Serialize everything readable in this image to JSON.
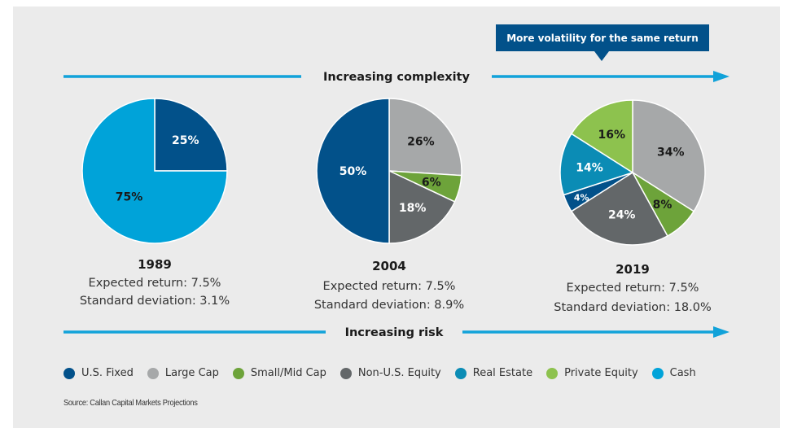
{
  "chart_data": {
    "type": "pie",
    "title": "",
    "top_arrow_label": "Increasing complexity",
    "bottom_arrow_label": "Increasing risk",
    "callout": "More volatility for the same return",
    "source": "Source: Callan Capital Markets Projections",
    "colors": {
      "U.S. Fixed": "#02518a",
      "Large Cap": "#a6a8a9",
      "Small/Mid Cap": "#6da33a",
      "Non-U.S. Equity": "#636769",
      "Real Estate": "#0b8cb5",
      "Private Equity": "#8dc24e",
      "Cash": "#00a3d9",
      "arrow": "#11a2d9"
    },
    "legend": [
      "U.S. Fixed",
      "Large Cap",
      "Small/Mid Cap",
      "Non-U.S. Equity",
      "Real Estate",
      "Private Equity",
      "Cash"
    ],
    "pies": [
      {
        "year": "1989",
        "expected_return": "Expected return: 7.5%",
        "std_dev": "Standard deviation: 3.1%",
        "slices": [
          {
            "name": "U.S. Fixed",
            "value": 25,
            "label": "25%",
            "label_color": "#ffffff"
          },
          {
            "name": "Cash",
            "value": 75,
            "label": "75%",
            "label_color": "#1a1a1a"
          }
        ]
      },
      {
        "year": "2004",
        "expected_return": "Expected return: 7.5%",
        "std_dev": "Standard deviation: 8.9%",
        "slices": [
          {
            "name": "Large Cap",
            "value": 26,
            "label": "26%",
            "label_color": "#1a1a1a"
          },
          {
            "name": "Small/Mid Cap",
            "value": 6,
            "label": "6%",
            "label_color": "#1a1a1a"
          },
          {
            "name": "Non-U.S. Equity",
            "value": 18,
            "label": "18%",
            "label_color": "#ffffff"
          },
          {
            "name": "U.S. Fixed",
            "value": 50,
            "label": "50%",
            "label_color": "#ffffff"
          }
        ]
      },
      {
        "year": "2019",
        "expected_return": "Expected return: 7.5%",
        "std_dev": "Standard deviation: 18.0%",
        "slices": [
          {
            "name": "Large Cap",
            "value": 34,
            "label": "34%",
            "label_color": "#1a1a1a"
          },
          {
            "name": "Small/Mid Cap",
            "value": 8,
            "label": "8%",
            "label_color": "#1a1a1a"
          },
          {
            "name": "Non-U.S. Equity",
            "value": 24,
            "label": "24%",
            "label_color": "#ffffff"
          },
          {
            "name": "U.S. Fixed",
            "value": 4,
            "label": "4%",
            "label_color": "#ffffff"
          },
          {
            "name": "Real Estate",
            "value": 14,
            "label": "14%",
            "label_color": "#ffffff"
          },
          {
            "name": "Private Equity",
            "value": 16,
            "label": "16%",
            "label_color": "#1a1a1a"
          }
        ]
      }
    ]
  }
}
